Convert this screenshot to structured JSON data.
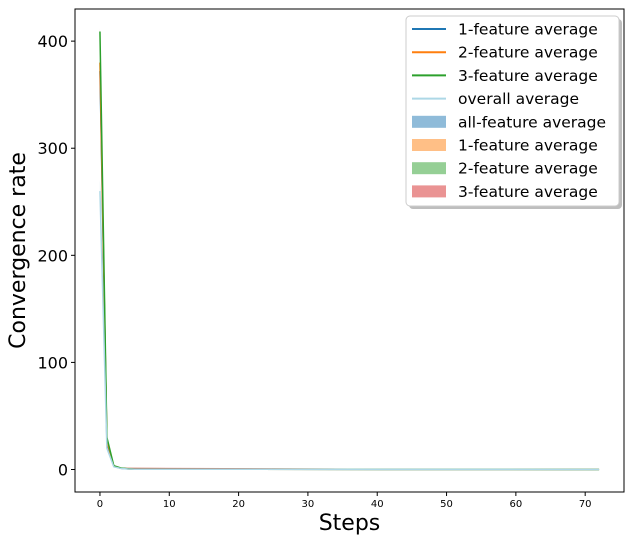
{
  "chart_data": {
    "type": "line",
    "title": "",
    "xlabel": "Steps",
    "ylabel": "Convergence rate",
    "xlim": [
      -3.6,
      75.6
    ],
    "ylim": [
      -21,
      430
    ],
    "xticks": [
      0,
      10,
      20,
      30,
      40,
      50,
      60,
      70
    ],
    "yticks": [
      0,
      100,
      200,
      300,
      400
    ],
    "grid": false,
    "legend_position": "top-right",
    "series": [
      {
        "name": "1-feature average",
        "kind": "line",
        "color": "#1f77b4",
        "x": [
          0,
          1,
          2,
          3,
          4,
          5,
          72
        ],
        "y": [
          372,
          25,
          3,
          1.2,
          0.6,
          0.3,
          0.05
        ]
      },
      {
        "name": "2-feature average",
        "kind": "line",
        "color": "#ff7f0e",
        "x": [
          0,
          1,
          2,
          3,
          4,
          5,
          72
        ],
        "y": [
          380,
          27,
          3,
          1.2,
          0.6,
          0.3,
          0.05
        ]
      },
      {
        "name": "3-feature average",
        "kind": "line",
        "color": "#2ca02c",
        "x": [
          0,
          1,
          2,
          3,
          4,
          5,
          72
        ],
        "y": [
          409,
          30,
          3.5,
          1.4,
          0.7,
          0.3,
          0.05
        ]
      },
      {
        "name": "overall average",
        "kind": "line",
        "color": "#add8e6",
        "x": [
          0,
          1,
          2,
          3,
          4,
          5,
          72
        ],
        "y": [
          260,
          20,
          2.5,
          1,
          0.5,
          0.3,
          0.05
        ]
      },
      {
        "name": "all-feature average",
        "kind": "band",
        "color": "#1f77b4",
        "opacity": 0.5,
        "x": [
          0,
          1,
          2,
          3,
          72
        ],
        "lower": [
          250,
          18,
          2,
          0.6,
          0
        ],
        "upper": [
          270,
          22,
          3,
          1.4,
          0.1
        ]
      },
      {
        "name": "1-feature average",
        "kind": "band",
        "color": "#ff7f0e",
        "opacity": 0.5,
        "x": [
          0,
          1,
          2,
          3,
          72
        ],
        "lower": [
          365,
          23,
          2.5,
          0.8,
          0
        ],
        "upper": [
          378,
          27,
          3.5,
          1.6,
          0.1
        ]
      },
      {
        "name": "2-feature average",
        "kind": "band",
        "color": "#2ca02c",
        "opacity": 0.5,
        "x": [
          0,
          1,
          2,
          3,
          72
        ],
        "lower": [
          375,
          25,
          2.5,
          0.8,
          0
        ],
        "upper": [
          385,
          29,
          3.5,
          1.6,
          0.1
        ]
      },
      {
        "name": "3-feature average",
        "kind": "band",
        "color": "#d62728",
        "opacity": 0.5,
        "x": [
          0,
          1,
          2,
          3,
          72
        ],
        "lower": [
          403,
          28,
          3,
          1,
          0
        ],
        "upper": [
          412,
          32,
          4,
          1.8,
          0.1
        ]
      }
    ]
  }
}
